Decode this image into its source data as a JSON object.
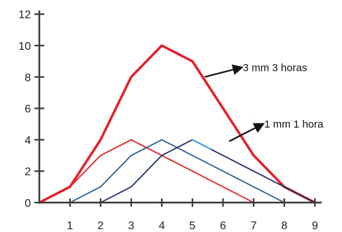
{
  "chart_data": {
    "type": "line",
    "title": "",
    "xlabel": "",
    "ylabel": "",
    "xlim": [
      0,
      9
    ],
    "ylim": [
      0,
      12
    ],
    "x_ticks": [
      1,
      2,
      3,
      4,
      5,
      6,
      7,
      8,
      9
    ],
    "y_ticks": [
      0,
      2,
      4,
      6,
      8,
      10,
      12
    ],
    "grid": false,
    "series": [
      {
        "color": "#e3202a",
        "width": 3.5,
        "x": [
          0,
          1,
          2,
          3,
          4,
          5,
          6,
          7,
          8,
          9
        ],
        "y": [
          0,
          1,
          4,
          8,
          10,
          9,
          6,
          3,
          1,
          0
        ]
      },
      {
        "color": "#e3202a",
        "width": 1.8,
        "x": [
          0,
          1,
          2,
          3,
          7
        ],
        "y": [
          0,
          1,
          3,
          4,
          0
        ]
      },
      {
        "color": "#2f5f8c",
        "width": 1.8,
        "x": [
          1,
          2,
          3,
          4,
          8
        ],
        "y": [
          0,
          1,
          3,
          4,
          0
        ]
      },
      {
        "color": "#1f2f6b",
        "width": 1.8,
        "x": [
          2,
          3,
          4,
          5,
          9
        ],
        "y": [
          0,
          1,
          3,
          4,
          0
        ]
      },
      {
        "color": "#3aa0e0",
        "width": 2,
        "x": [
          5,
          5.6
        ],
        "y": [
          4,
          3.4
        ]
      }
    ],
    "annotations": [
      {
        "text": "3 mm 3 horas",
        "arrow_from": [
          6.6,
          8.6
        ],
        "arrow_to": [
          5.4,
          8.0
        ]
      },
      {
        "text": "1 mm 1 hora",
        "arrow_from": [
          7.3,
          5.0
        ],
        "arrow_to": [
          6.2,
          3.9
        ]
      }
    ]
  }
}
